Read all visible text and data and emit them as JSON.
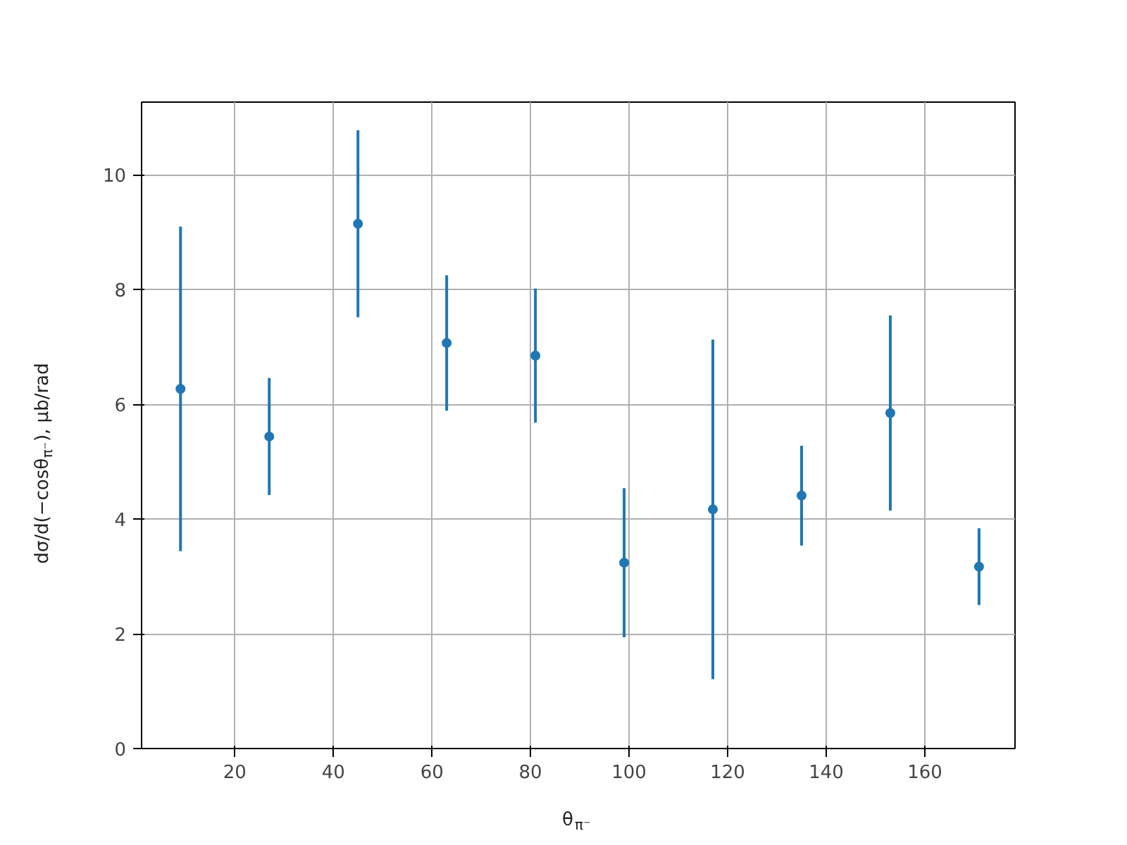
{
  "chart_data": {
    "type": "scatter",
    "xlabel": "θ$_{π⁻}$",
    "ylabel": "dσ/d(−cosθ$_{π⁻}$), μb/rad",
    "x": [
      9,
      27,
      45,
      63,
      81,
      99,
      117,
      135,
      153,
      171
    ],
    "series": [
      {
        "color": "#1f77b4",
        "values": [
          6.27,
          5.44,
          9.15,
          7.07,
          6.85,
          3.24,
          4.17,
          4.41,
          5.85,
          3.17
        ],
        "errors": [
          2.83,
          1.02,
          1.63,
          1.18,
          1.17,
          1.3,
          2.96,
          0.87,
          1.7,
          0.67
        ]
      }
    ],
    "xlim": [
      1.1,
      178.3
    ],
    "ylim": [
      0,
      11.27
    ],
    "xticks": [
      20,
      40,
      60,
      80,
      100,
      120,
      140,
      160
    ],
    "yticks": [
      0,
      2,
      4,
      6,
      8,
      10
    ],
    "grid": true,
    "marker": "circle"
  }
}
